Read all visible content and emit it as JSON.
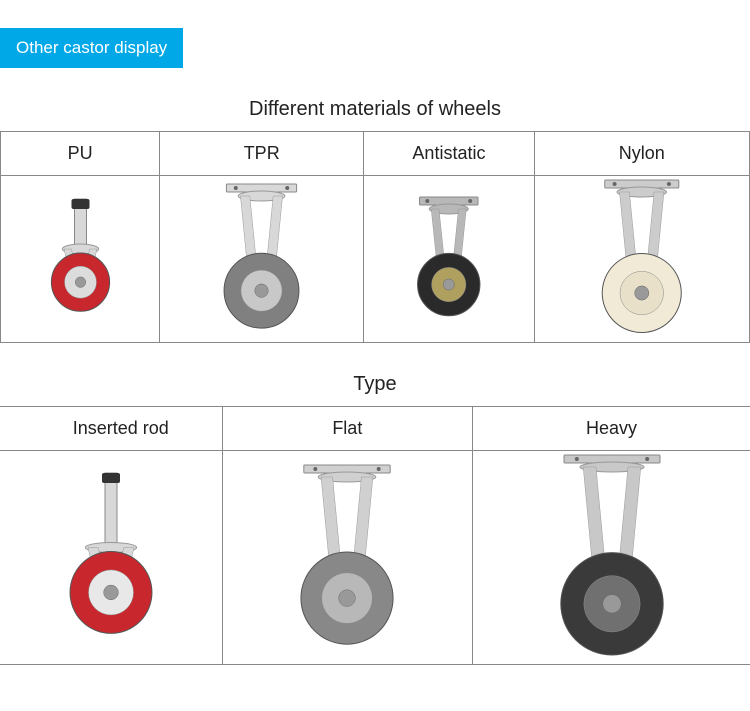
{
  "header": {
    "label": "Other castor display",
    "background_color": "#00a8e8",
    "text_color": "#ffffff"
  },
  "section1": {
    "title": "Different materials of wheels",
    "columns": [
      "PU",
      "TPR",
      "Antistatic",
      "Nylon"
    ],
    "casters": [
      {
        "wheel_color": "#c8282d",
        "hub_color": "#dcdcdc",
        "bracket_color": "#d8d8d8",
        "mount": "stem",
        "size": 0.7
      },
      {
        "wheel_color": "#808080",
        "hub_color": "#c8c8c8",
        "bracket_color": "#d8d8d8",
        "mount": "plate",
        "size": 0.9
      },
      {
        "wheel_color": "#2a2a2a",
        "hub_color": "#b0a060",
        "bracket_color": "#b8b8b8",
        "mount": "plate",
        "size": 0.75
      },
      {
        "wheel_color": "#f0ead6",
        "hub_color": "#e8e0c8",
        "bracket_color": "#cccccc",
        "mount": "plate",
        "size": 0.95
      }
    ]
  },
  "section2": {
    "title": "Type",
    "columns": [
      "Inserted rod",
      "Flat",
      "Heavy"
    ],
    "casters": [
      {
        "wheel_color": "#c8282d",
        "hub_color": "#e8e8e8",
        "bracket_color": "#d8d8d8",
        "mount": "stem",
        "size": 0.8
      },
      {
        "wheel_color": "#888888",
        "hub_color": "#b8b8b8",
        "bracket_color": "#d0d0d0",
        "mount": "plate",
        "size": 0.9
      },
      {
        "wheel_color": "#3a3a3a",
        "hub_color": "#707070",
        "bracket_color": "#c8c8c8",
        "mount": "plate",
        "size": 1.0
      }
    ]
  },
  "styling": {
    "border_color": "#888888",
    "title_fontsize": 20,
    "header_fontsize": 18,
    "text_color": "#222222"
  }
}
